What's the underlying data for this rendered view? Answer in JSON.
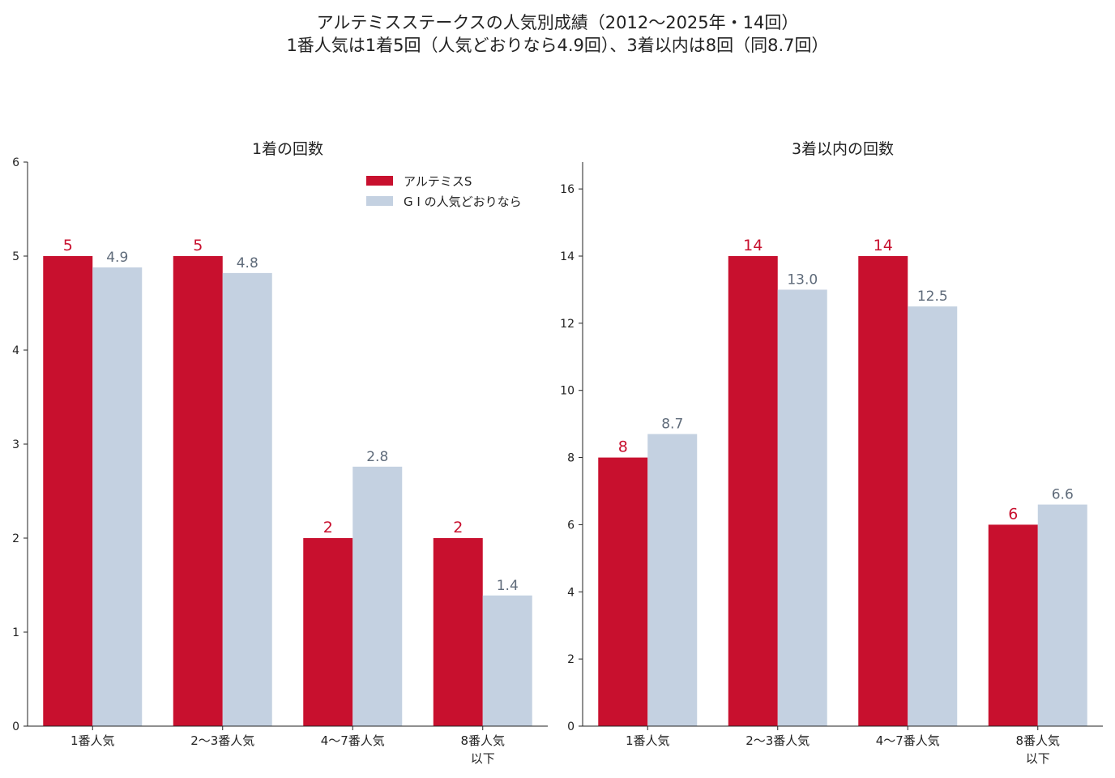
{
  "figure": {
    "title_line1": "アルテミスステークスの人気別成績（2012〜2025年・14回）",
    "title_line2": "1番人気は1着5回（人気どおりなら4.9回）、3着以内は8回（同8.7回）"
  },
  "colors": {
    "artemis": "#c8102e",
    "expected": "#c4d1e1",
    "expected_label": "#5f6b7a",
    "axis": "#222222"
  },
  "legend": {
    "placement": "top-right",
    "items": [
      {
        "label": "アルテミスS"
      },
      {
        "label": "G I の人気どおりなら"
      }
    ]
  },
  "chart_data": [
    {
      "type": "bar",
      "title": "1着の回数",
      "categories": [
        [
          "1番人気"
        ],
        [
          "2〜3番人気"
        ],
        [
          "4〜7番人気"
        ],
        [
          "8番人気",
          "以下"
        ]
      ],
      "ylim": [
        0,
        6
      ],
      "yticks": [
        0,
        1,
        2,
        3,
        4,
        5,
        6
      ],
      "series": [
        {
          "name": "アルテミスS",
          "values": [
            5,
            5,
            2,
            2
          ],
          "labels": [
            "5",
            "5",
            "2",
            "2"
          ]
        },
        {
          "name": "G I の人気どおりなら",
          "values": [
            4.88,
            4.82,
            2.76,
            1.39
          ],
          "labels": [
            "4.9",
            "4.8",
            "2.8",
            "1.4"
          ]
        }
      ],
      "legend": true
    },
    {
      "type": "bar",
      "title": "3着以内の回数",
      "categories": [
        [
          "1番人気"
        ],
        [
          "2〜3番人気"
        ],
        [
          "4〜7番人気"
        ],
        [
          "8番人気",
          "以下"
        ]
      ],
      "ylim": [
        0,
        16.8
      ],
      "yticks": [
        0,
        2,
        4,
        6,
        8,
        10,
        12,
        14,
        16
      ],
      "series": [
        {
          "name": "アルテミスS",
          "values": [
            8,
            14,
            14,
            6
          ],
          "labels": [
            "8",
            "14",
            "14",
            "6"
          ]
        },
        {
          "name": "G I の人気どおりなら",
          "values": [
            8.7,
            13.0,
            12.5,
            6.6
          ],
          "labels": [
            "8.7",
            "13.0",
            "12.5",
            "6.6"
          ]
        }
      ],
      "legend": false
    }
  ]
}
